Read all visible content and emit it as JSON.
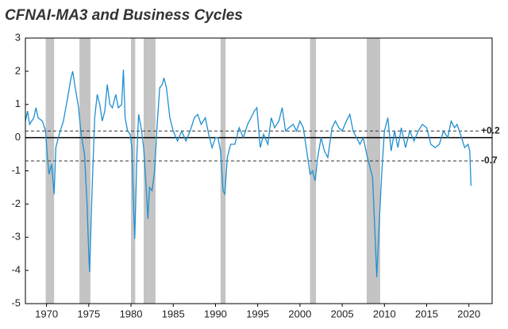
{
  "chart_data": {
    "type": "line",
    "title": "CFNAI-MA3 and Business Cycles",
    "x": [
      1967.5,
      1967.75,
      1968,
      1968.5,
      1968.75,
      1969,
      1969.5,
      1969.9,
      1970.1,
      1970.3,
      1970.6,
      1970.9,
      1971.1,
      1971.5,
      1972,
      1972.5,
      1972.9,
      1973.1,
      1973.4,
      1973.8,
      1974.1,
      1974.5,
      1974.8,
      1975.0,
      1975.1,
      1975.4,
      1975.7,
      1976,
      1976.3,
      1976.6,
      1976.9,
      1977.2,
      1977.5,
      1977.8,
      1978.2,
      1978.5,
      1978.9,
      1979.1,
      1979.3,
      1979.6,
      1979.9,
      1980.1,
      1980.3,
      1980.45,
      1980.7,
      1980.9,
      1981.2,
      1981.5,
      1981.8,
      1982.0,
      1982.2,
      1982.5,
      1982.8,
      1983.1,
      1983.4,
      1983.7,
      1983.9,
      1984.2,
      1984.6,
      1985,
      1985.5,
      1986,
      1986.5,
      1987,
      1987.5,
      1987.9,
      1988.3,
      1988.8,
      1989.2,
      1989.6,
      1990,
      1990.3,
      1990.6,
      1990.9,
      1991.1,
      1991.4,
      1991.8,
      1992.3,
      1992.8,
      1993.3,
      1993.8,
      1994.2,
      1994.6,
      1994.9,
      1995.3,
      1995.7,
      1996.2,
      1996.6,
      1997.0,
      1997.5,
      1997.9,
      1998.3,
      1998.7,
      1999.2,
      1999.6,
      2000.0,
      2000.4,
      2000.8,
      2001.2,
      2001.5,
      2001.8,
      2002.1,
      2002.5,
      2002.9,
      2003.3,
      2003.8,
      2004.2,
      2004.6,
      2005.0,
      2005.5,
      2005.9,
      2006.3,
      2006.7,
      2007.1,
      2007.5,
      2007.9,
      2008.3,
      2008.6,
      2008.9,
      2009.1,
      2009.4,
      2009.7,
      2010.0,
      2010.4,
      2010.8,
      2011.2,
      2011.6,
      2012.0,
      2012.5,
      2013.0,
      2013.5,
      2014.0,
      2014.5,
      2015.0,
      2015.5,
      2016.0,
      2016.5,
      2017.0,
      2017.5,
      2017.9,
      2018.3,
      2018.6,
      2019.0,
      2019.5,
      2019.9,
      2020.1,
      2020.25
    ],
    "series": [
      {
        "color": "#1f8fd0",
        "values": [
          0.5,
          0.8,
          0.4,
          0.6,
          0.9,
          0.6,
          0.5,
          0.2,
          -0.6,
          -1.1,
          -0.8,
          -1.7,
          -0.3,
          0.1,
          0.5,
          1.2,
          1.8,
          2.0,
          1.5,
          0.9,
          0.1,
          -0.5,
          -2.0,
          -3.5,
          -4.05,
          -1.5,
          0.6,
          1.3,
          1.0,
          0.5,
          0.8,
          1.6,
          1.0,
          0.9,
          1.3,
          0.9,
          1.0,
          2.05,
          0.6,
          0.2,
          0.1,
          -0.3,
          -2.0,
          -3.05,
          -0.5,
          0.7,
          0.3,
          -0.3,
          -1.5,
          -2.45,
          -1.5,
          -1.6,
          -1.0,
          0.4,
          1.5,
          1.6,
          1.8,
          1.5,
          0.6,
          0.2,
          -0.1,
          0.2,
          -0.1,
          0.2,
          0.6,
          0.7,
          0.4,
          0.6,
          0.1,
          -0.3,
          0.0,
          0.0,
          -0.4,
          -1.6,
          -1.7,
          -0.6,
          -0.2,
          -0.2,
          0.3,
          0.0,
          0.4,
          0.6,
          0.8,
          0.9,
          -0.3,
          0.1,
          -0.2,
          0.6,
          0.3,
          0.5,
          0.9,
          0.2,
          0.3,
          0.4,
          0.2,
          0.5,
          0.3,
          -0.4,
          -1.1,
          -1.0,
          -1.3,
          -0.6,
          0.0,
          -0.4,
          -0.6,
          0.3,
          0.5,
          0.3,
          0.2,
          0.5,
          0.7,
          0.2,
          0.0,
          -0.2,
          0.0,
          -0.5,
          -0.9,
          -1.2,
          -3.0,
          -4.2,
          -2.5,
          -1.0,
          0.2,
          0.6,
          -0.4,
          0.2,
          -0.3,
          0.3,
          -0.3,
          0.2,
          -0.1,
          0.2,
          0.4,
          0.3,
          -0.2,
          -0.3,
          -0.2,
          0.2,
          0.0,
          0.5,
          0.3,
          0.4,
          0.1,
          -0.3,
          -0.2,
          -0.4,
          -1.45
        ]
      }
    ],
    "recessions": [
      [
        1969.9,
        1970.9
      ],
      [
        1973.9,
        1975.2
      ],
      [
        1980.0,
        1980.5
      ],
      [
        1981.5,
        1982.9
      ],
      [
        1990.6,
        1991.2
      ],
      [
        2001.2,
        2001.9
      ],
      [
        2007.9,
        2009.5
      ]
    ],
    "reference_lines": [
      {
        "value": 0.2,
        "label": "+0.2"
      },
      {
        "value": -0.7,
        "label": "-0.7"
      }
    ],
    "xlim": [
      1967.5,
      2022.75
    ],
    "ylim": [
      -5,
      3
    ],
    "xticks": [
      1970,
      1975,
      1980,
      1985,
      1990,
      1995,
      2000,
      2005,
      2010,
      2015,
      2020
    ],
    "yticks": [
      3,
      2,
      1,
      0,
      -1,
      -2,
      -3,
      -4,
      -5
    ]
  }
}
